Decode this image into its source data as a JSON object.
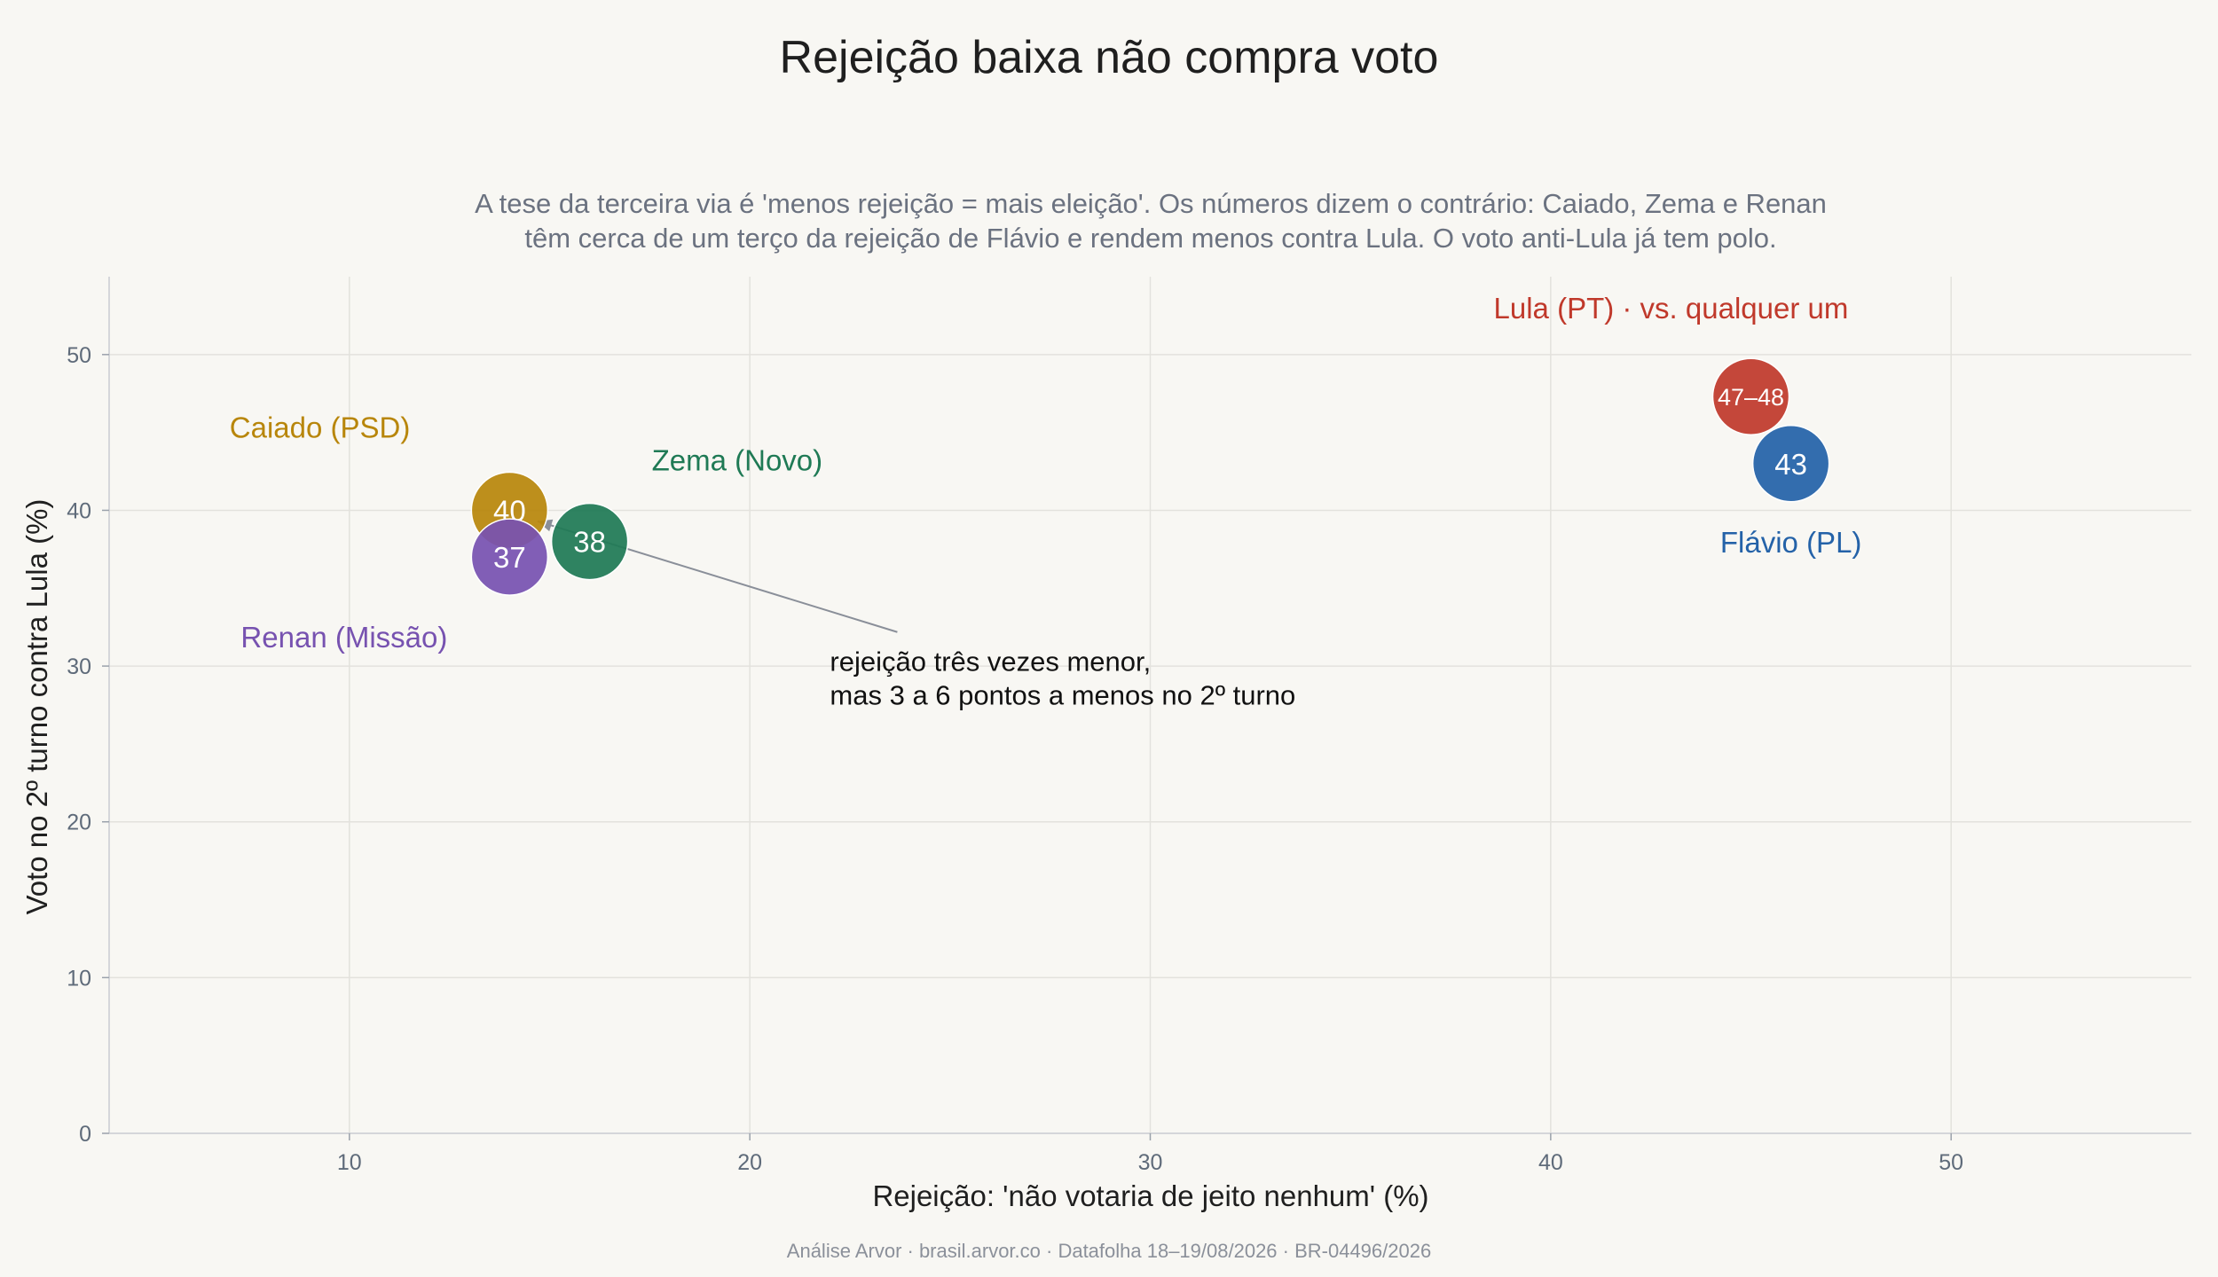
{
  "title": "Rejeição baixa não compra voto",
  "subtitle_lines": [
    "A tese da terceira via é 'menos rejeição = mais eleição'. Os números dizem o contrário: Caiado, Zema e Renan",
    "têm cerca de um terço da rejeição de Flávio e rendem menos contra Lula. O voto anti-Lula já tem polo."
  ],
  "footer": "Análise Arvor · brasil.arvor.co · Datafolha 18–19/08/2026 · BR-04496/2026",
  "chart_data": {
    "type": "scatter",
    "xlabel": "Rejeição: 'não votaria de jeito nenhum' (%)",
    "ylabel": "Voto no 2º turno contra Lula (%)",
    "xlim": [
      4,
      56
    ],
    "ylim": [
      0,
      55
    ],
    "xticks": [
      10,
      20,
      30,
      40,
      50
    ],
    "yticks": [
      0,
      10,
      20,
      30,
      40,
      50
    ],
    "grid": true,
    "points": [
      {
        "name": "Lula (PT) · vs. qualquer um",
        "x": 45,
        "y": 47.3,
        "value_label": "47–48",
        "color": "#c0392b"
      },
      {
        "name": "Flávio (PL)",
        "x": 46,
        "y": 43,
        "value_label": "43",
        "color": "#2462a8"
      },
      {
        "name": "Caiado (PSD)",
        "x": 14,
        "y": 40,
        "value_label": "40",
        "color": "#b8860b"
      },
      {
        "name": "Zema (Novo)",
        "x": 16,
        "y": 38,
        "value_label": "38",
        "color": "#1f7a55"
      },
      {
        "name": "Renan (Missão)",
        "x": 14,
        "y": 37,
        "value_label": "37",
        "color": "#7752b0"
      }
    ],
    "annotation": {
      "text_lines": [
        "rejeição três vezes menor,",
        "mas 3 a 6 pontos a menos no 2º turno"
      ],
      "points_to": {
        "x": 14.7,
        "y": 39.3
      },
      "text_at": {
        "x": 22,
        "y": 31.5
      }
    }
  }
}
